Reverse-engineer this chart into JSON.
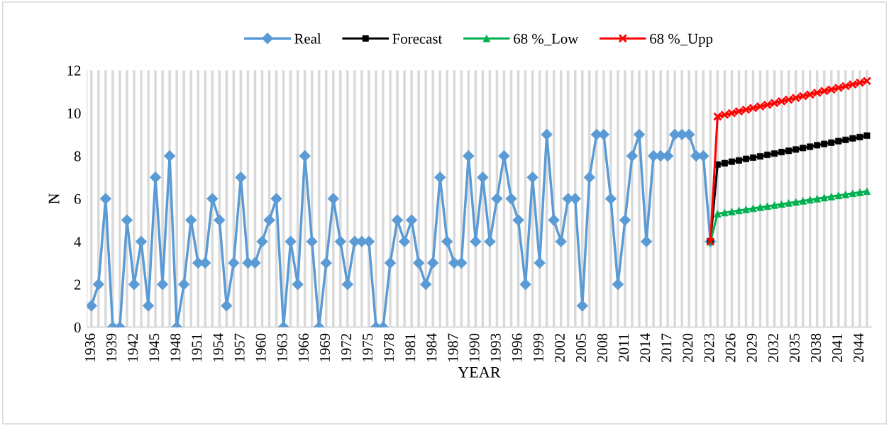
{
  "chart_data": {
    "type": "line",
    "xlabel": "YEAR",
    "ylabel": "N",
    "categories": [
      "1936",
      null,
      null,
      "1939",
      null,
      null,
      "1942",
      null,
      null,
      "1945",
      null,
      null,
      "1948",
      null,
      null,
      "1951",
      null,
      null,
      "1954",
      null,
      null,
      "1957",
      null,
      null,
      "1960",
      null,
      null,
      "1963",
      null,
      null,
      "1966",
      null,
      null,
      "1969",
      null,
      null,
      "1972",
      null,
      null,
      "1975",
      null,
      null,
      "1978",
      null,
      null,
      "1981",
      null,
      null,
      "1984",
      null,
      null,
      "1987",
      null,
      null,
      "1990",
      null,
      null,
      "1993",
      null,
      null,
      "1996",
      null,
      null,
      "1999",
      null,
      null,
      "2002",
      null,
      null,
      "2005",
      null,
      null,
      "2008",
      null,
      null,
      "2011",
      null,
      null,
      "2014",
      null,
      null,
      "2017",
      null,
      null,
      "2020",
      null,
      null,
      "2023",
      null,
      null,
      "2026",
      null,
      null,
      "2029",
      null,
      null,
      "2032",
      null,
      null,
      "2035",
      null,
      null,
      "2038",
      null,
      null,
      "2041",
      null,
      null,
      "2044",
      null
    ],
    "series": [
      {
        "name": "Real",
        "color": "#5b9bd5",
        "marker": "diamond",
        "values": [
          1,
          2,
          6,
          0,
          0,
          5,
          2,
          4,
          1,
          7,
          2,
          8,
          0,
          2,
          5,
          3,
          3,
          6,
          5,
          1,
          3,
          7,
          3,
          3,
          4,
          5,
          6,
          0,
          4,
          2,
          8,
          4,
          0,
          3,
          6,
          4,
          2,
          4,
          4,
          4,
          0,
          0,
          3,
          5,
          4,
          5,
          3,
          2,
          3,
          7,
          4,
          3,
          3,
          8,
          4,
          7,
          4,
          6,
          8,
          6,
          5,
          2,
          7,
          3,
          9,
          5,
          4,
          6,
          6,
          1,
          7,
          9,
          9,
          6,
          2,
          5,
          8,
          9,
          4,
          8,
          8,
          8,
          9,
          9,
          9,
          8,
          8,
          4,
          null,
          null,
          null,
          null,
          null,
          null,
          null,
          null,
          null,
          null,
          null,
          null,
          null,
          null,
          null,
          null,
          null,
          null,
          null,
          null,
          null,
          null
        ]
      },
      {
        "name": "Forecast",
        "color": "#000000",
        "marker": "square",
        "values": [
          null,
          null,
          null,
          null,
          null,
          null,
          null,
          null,
          null,
          null,
          null,
          null,
          null,
          null,
          null,
          null,
          null,
          null,
          null,
          null,
          null,
          null,
          null,
          null,
          null,
          null,
          null,
          null,
          null,
          null,
          null,
          null,
          null,
          null,
          null,
          null,
          null,
          null,
          null,
          null,
          null,
          null,
          null,
          null,
          null,
          null,
          null,
          null,
          null,
          null,
          null,
          null,
          null,
          null,
          null,
          null,
          null,
          null,
          null,
          null,
          null,
          null,
          null,
          null,
          null,
          null,
          null,
          null,
          null,
          null,
          null,
          null,
          null,
          null,
          null,
          null,
          null,
          null,
          null,
          null,
          null,
          null,
          null,
          null,
          null,
          null,
          null,
          4,
          7.6,
          7.66,
          7.73,
          7.79,
          7.86,
          7.92,
          7.98,
          8.05,
          8.11,
          8.18,
          8.24,
          8.3,
          8.37,
          8.43,
          8.5,
          8.56,
          8.62,
          8.69,
          8.75,
          8.82,
          8.88,
          8.95
        ]
      },
      {
        "name": "68 %_Low",
        "color": "#00b050",
        "marker": "triangle",
        "values": [
          null,
          null,
          null,
          null,
          null,
          null,
          null,
          null,
          null,
          null,
          null,
          null,
          null,
          null,
          null,
          null,
          null,
          null,
          null,
          null,
          null,
          null,
          null,
          null,
          null,
          null,
          null,
          null,
          null,
          null,
          null,
          null,
          null,
          null,
          null,
          null,
          null,
          null,
          null,
          null,
          null,
          null,
          null,
          null,
          null,
          null,
          null,
          null,
          null,
          null,
          null,
          null,
          null,
          null,
          null,
          null,
          null,
          null,
          null,
          null,
          null,
          null,
          null,
          null,
          null,
          null,
          null,
          null,
          null,
          null,
          null,
          null,
          null,
          null,
          null,
          null,
          null,
          null,
          null,
          null,
          null,
          null,
          null,
          null,
          null,
          null,
          null,
          4,
          5.3,
          5.35,
          5.4,
          5.45,
          5.5,
          5.55,
          5.6,
          5.65,
          5.7,
          5.75,
          5.8,
          5.85,
          5.9,
          5.95,
          6.0,
          6.05,
          6.1,
          6.15,
          6.2,
          6.25,
          6.3,
          6.35
        ]
      },
      {
        "name": "68 %_Upp",
        "color": "#ff0000",
        "marker": "cross",
        "values": [
          null,
          null,
          null,
          null,
          null,
          null,
          null,
          null,
          null,
          null,
          null,
          null,
          null,
          null,
          null,
          null,
          null,
          null,
          null,
          null,
          null,
          null,
          null,
          null,
          null,
          null,
          null,
          null,
          null,
          null,
          null,
          null,
          null,
          null,
          null,
          null,
          null,
          null,
          null,
          null,
          null,
          null,
          null,
          null,
          null,
          null,
          null,
          null,
          null,
          null,
          null,
          null,
          null,
          null,
          null,
          null,
          null,
          null,
          null,
          null,
          null,
          null,
          null,
          null,
          null,
          null,
          null,
          null,
          null,
          null,
          null,
          null,
          null,
          null,
          null,
          null,
          null,
          null,
          null,
          null,
          null,
          null,
          null,
          null,
          null,
          null,
          null,
          4,
          9.84,
          9.92,
          10.0,
          10.08,
          10.16,
          10.24,
          10.31,
          10.39,
          10.47,
          10.55,
          10.63,
          10.71,
          10.79,
          10.87,
          10.95,
          11.03,
          11.1,
          11.18,
          11.26,
          11.34,
          11.42,
          11.5
        ]
      }
    ],
    "ylim": [
      0,
      12
    ],
    "yticks": [
      0,
      2,
      4,
      6,
      8,
      10,
      12
    ],
    "grid": "x",
    "legend": "top",
    "line_style": "solid"
  }
}
